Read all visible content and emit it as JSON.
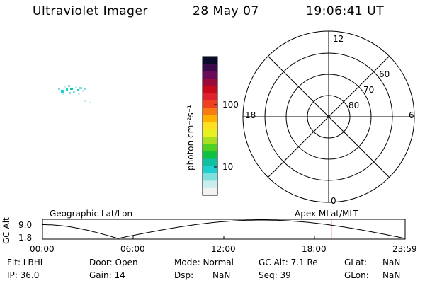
{
  "header": {
    "title": "Ultraviolet Imager",
    "date": "28 May 07",
    "time": "19:06:41 UT"
  },
  "colorbar": {
    "label": "photon cm⁻²s⁻¹",
    "ticks": [
      "100",
      "10"
    ],
    "colors": [
      "#0a0a2a",
      "#3a0a4a",
      "#6a0a5a",
      "#9a0a3a",
      "#c80a1a",
      "#e0202a",
      "#f04020",
      "#f87a10",
      "#ffb000",
      "#ffe020",
      "#e8f020",
      "#a8e020",
      "#50d020",
      "#10c040",
      "#10c0a0",
      "#20d0d0",
      "#80e0e0",
      "#c8eeee",
      "#f2f2f2"
    ]
  },
  "polar_plot": {
    "mlt_labels": {
      "top": "12",
      "left": "18",
      "right": "6",
      "bottom": "0"
    },
    "lat_labels": [
      "60",
      "70",
      "80"
    ]
  },
  "timeline": {
    "title_left": "Geographic Lat/Lon",
    "title_right": "Apex MLat/MLT",
    "ylabel": "GC Alt",
    "ytick_top": "9.0",
    "ytick_bottom": "1.8",
    "xticks": [
      "00:00",
      "06:00",
      "12:00",
      "18:00",
      "23:59"
    ],
    "marker_time_hours": 19.11,
    "line_color": "#000000",
    "marker_color": "#e00000"
  },
  "info": {
    "flt": "Flt: LBHL",
    "ip": "IP: 36.0",
    "door": "Door: Open",
    "gain": "Gain: 14",
    "mode": "Mode: Normal",
    "dsp_label": "Dsp:",
    "dsp_value": "NaN",
    "gcalt": "GC Alt: 7.1 Re",
    "seq": "Seq: 39",
    "glat_label": "GLat:",
    "glat_value": "NaN",
    "glon_label": "GLon:",
    "glon_value": "NaN"
  }
}
